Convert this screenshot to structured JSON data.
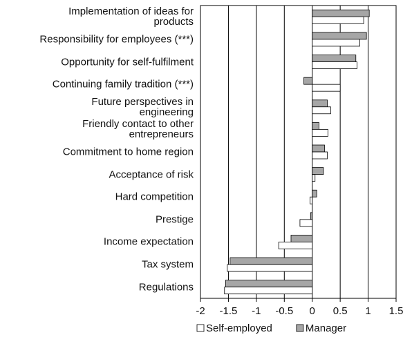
{
  "chart_data": {
    "type": "hbar",
    "categories": [
      "Implementation of ideas for\nproducts",
      "Responsibility for employees (***)",
      "Opportunity for self-fulfilment",
      "Continuing family tradition (***)",
      "Future perspectives in\nengineering",
      "Friendly contact to other\nentrepreneurs",
      "Commitment to home region",
      "Acceptance of risk",
      "Hard competition",
      "Prestige",
      "Income expectation",
      "Tax system",
      "Regulations"
    ],
    "series": [
      {
        "name": "Self-employed",
        "color": "#ffffff",
        "values": [
          0.92,
          0.85,
          0.8,
          0.5,
          0.33,
          0.28,
          0.27,
          0.05,
          -0.04,
          -0.22,
          -0.6,
          -1.52,
          -1.57
        ]
      },
      {
        "name": "Manager",
        "color": "#a6a6a6",
        "values": [
          1.02,
          0.97,
          0.78,
          -0.15,
          0.27,
          0.12,
          0.22,
          0.2,
          0.08,
          -0.03,
          -0.38,
          -1.47,
          -1.55
        ]
      }
    ],
    "xlim": [
      -2,
      1.5
    ],
    "xticks": [
      -2,
      -1.5,
      -1,
      -0.5,
      0,
      0.5,
      1,
      1.5
    ],
    "grid": true,
    "legend": "bottom"
  }
}
